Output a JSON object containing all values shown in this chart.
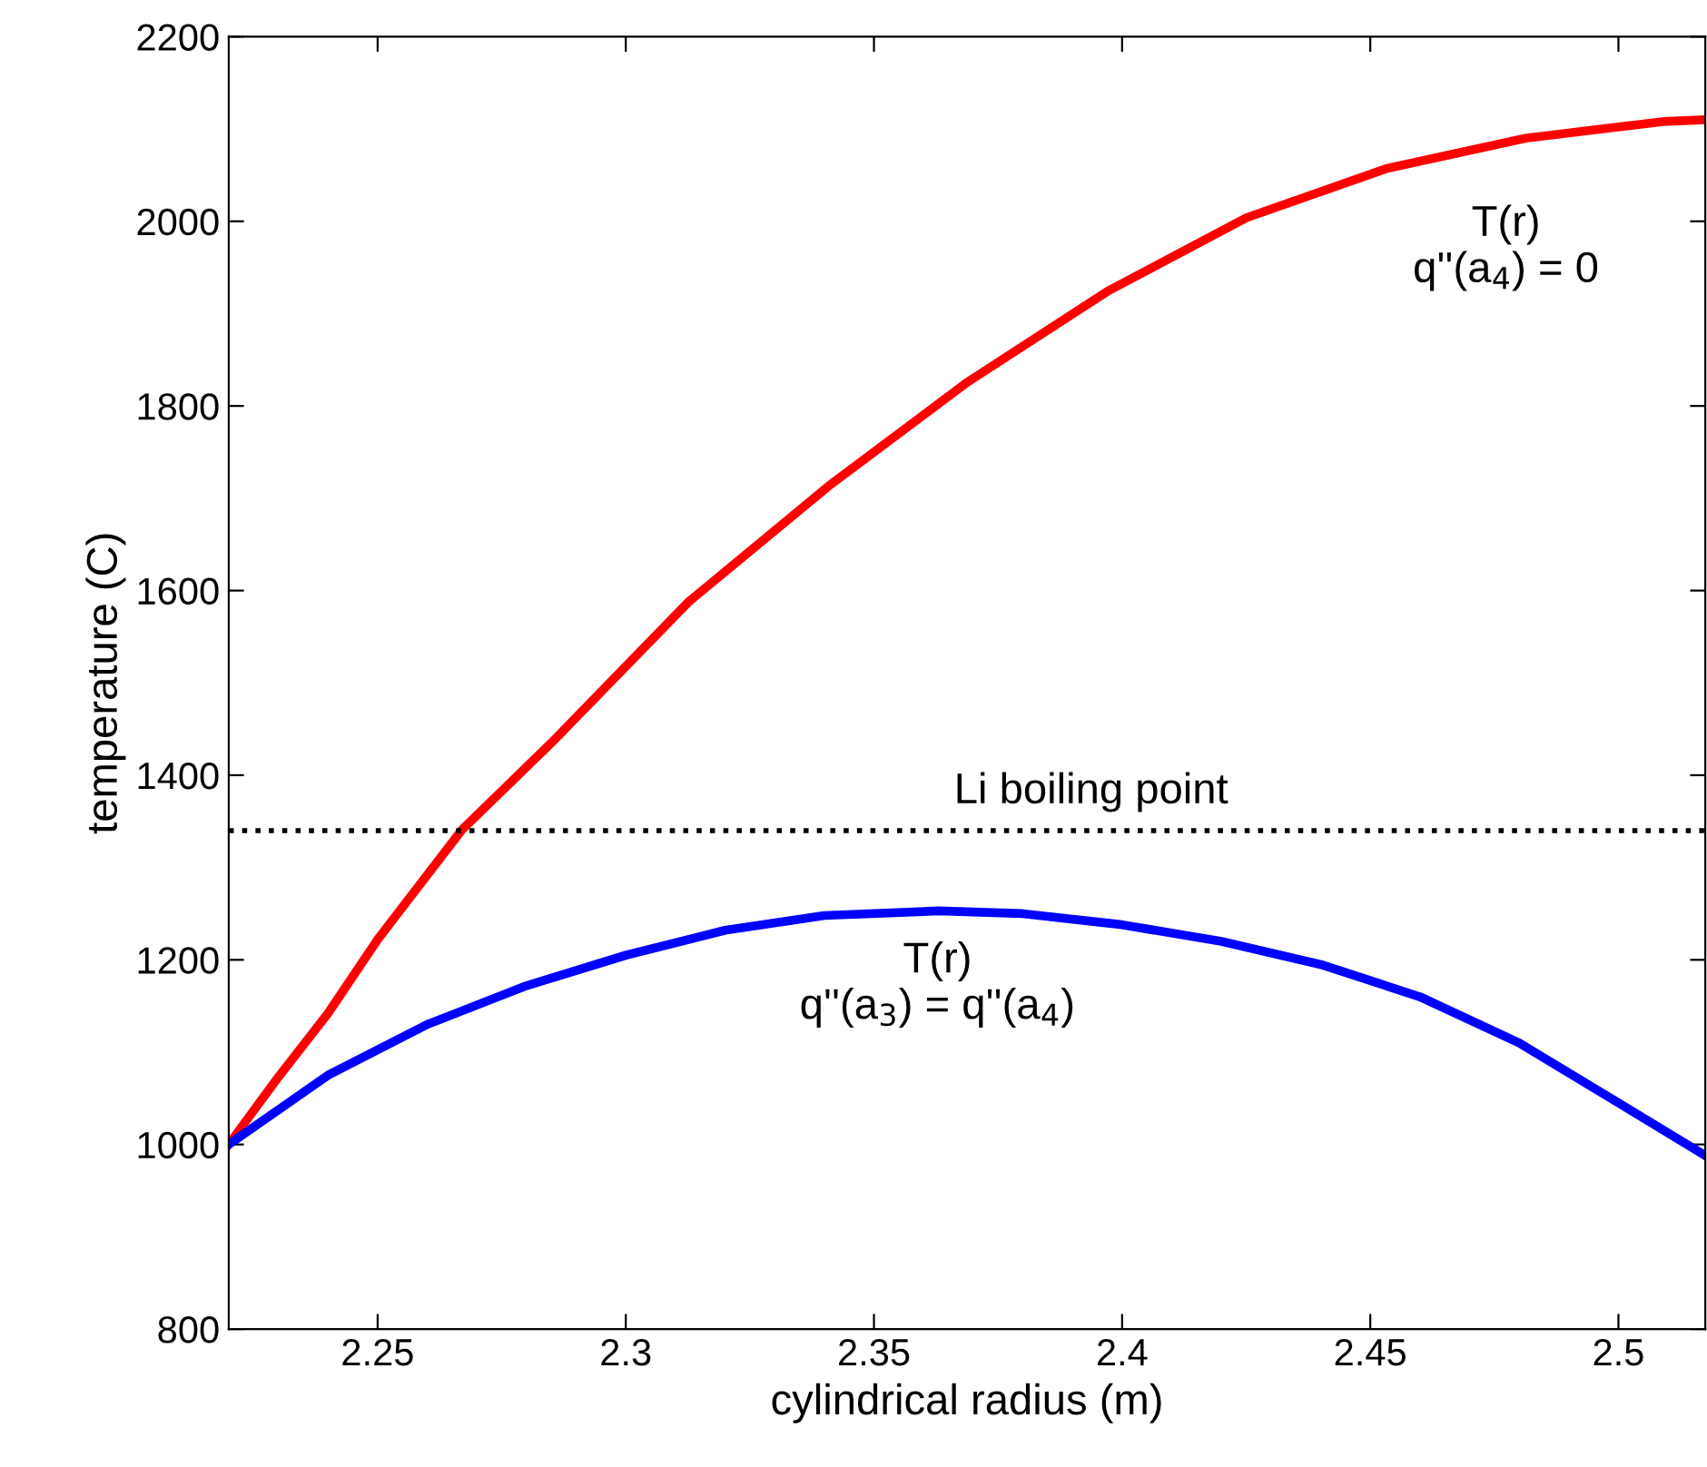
{
  "chart_data": {
    "type": "line",
    "xlabel": "cylindrical radius (m)",
    "ylabel": "temperature (C)",
    "xlim": [
      2.22,
      2.5175
    ],
    "ylim": [
      800,
      2200
    ],
    "xticks": [
      2.25,
      2.3,
      2.35,
      2.4,
      2.45,
      2.5
    ],
    "yticks": [
      800,
      1000,
      1200,
      1400,
      1600,
      1800,
      2000,
      2200
    ],
    "grid": false,
    "legend": false,
    "line_style": "solid",
    "marker": "none",
    "series": [
      {
        "color": "#ff0000",
        "x": [
          2.22,
          2.23,
          2.24,
          2.25,
          2.267,
          2.285,
          2.3127,
          2.3408,
          2.3689,
          2.397,
          2.4251,
          2.4532,
          2.4813,
          2.509,
          2.5175
        ],
        "values": [
          1000,
          1073,
          1142,
          1222,
          1341,
          1435,
          1588,
          1713,
          1826,
          1924,
          2004,
          2057,
          2090,
          2108,
          2110
        ]
      },
      {
        "color": "#0000ff",
        "x": [
          2.22,
          2.24,
          2.26,
          2.28,
          2.3,
          2.32,
          2.34,
          2.363,
          2.38,
          2.4,
          2.42,
          2.44,
          2.46,
          2.48,
          2.5,
          2.5175
        ],
        "values": [
          1000,
          1075,
          1130,
          1172,
          1205,
          1232,
          1248,
          1253,
          1250,
          1238,
          1220,
          1195,
          1160,
          1110,
          1045,
          988
        ]
      }
    ],
    "ref_lines": [
      {
        "axis": "y",
        "value": 1340,
        "label": "Li boiling point",
        "color": "#000000",
        "line_style": "dotted"
      }
    ],
    "annotations": [
      "T(r)\nq''(a$_{4}$) = 0",
      "T(r)\nq''(a$_{3}$) = q''(a$_{4}$)"
    ]
  }
}
